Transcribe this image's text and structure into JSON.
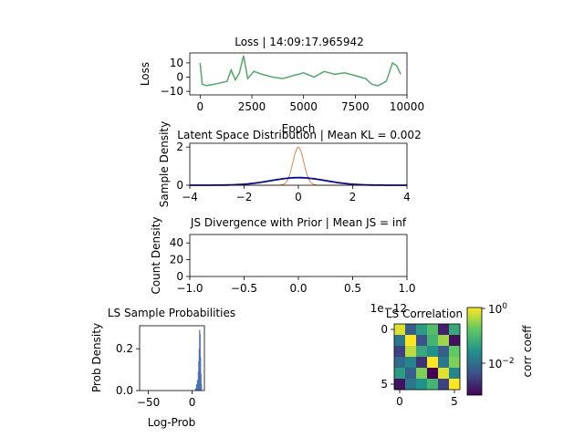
{
  "chart_data": [
    {
      "type": "line",
      "title": "Loss | 14:09:17.965942",
      "xlabel": "Epoch",
      "ylabel": "Loss",
      "xlim": [
        -500,
        10000
      ],
      "ylim": [
        -12.5,
        17
      ],
      "xticks": [
        0,
        2500,
        5000,
        7500,
        10000
      ],
      "yticks": [
        10,
        0,
        -10
      ],
      "series": [
        {
          "color": "#55a868",
          "x": [
            0,
            100,
            300,
            700,
            1000,
            1300,
            1500,
            1700,
            1900,
            2100,
            2300,
            2600,
            3000,
            3500,
            4000,
            4500,
            5000,
            5500,
            6000,
            6500,
            7000,
            7500,
            8000,
            8300,
            8600,
            9000,
            9300,
            9500,
            9700
          ],
          "y": [
            10,
            -5,
            -6,
            -5,
            -4,
            -3,
            5,
            -2,
            3,
            15,
            -1,
            4,
            2,
            0,
            -1,
            1,
            3,
            0,
            4,
            2,
            3,
            1,
            -1,
            -5,
            -6,
            -3,
            10,
            8,
            2
          ]
        }
      ]
    },
    {
      "type": "area",
      "title": "Latent Space Distribution | Mean KL = 0.002",
      "xlabel": "",
      "ylabel": "Sample Density",
      "xlim": [
        -4,
        4
      ],
      "ylim": [
        0,
        2.2
      ],
      "xticks": [
        -4,
        -2,
        0,
        2,
        4
      ],
      "yticks": [
        2,
        0
      ],
      "prior": {
        "color": "#0b0b8a",
        "mean": 0,
        "std": 1
      },
      "samples": {
        "color": "#dd8452",
        "mean": 0,
        "std": 0.2
      }
    },
    {
      "type": "line",
      "title": "JS Divergence with Prior | Mean JS = inf",
      "xlabel": "",
      "ylabel": "Count Density",
      "xlim": [
        -1,
        1
      ],
      "ylim": [
        0,
        50
      ],
      "xticks": [
        -1.0,
        -0.5,
        0.0,
        0.5,
        1.0
      ],
      "xtick_labels": [
        "−1.0",
        "−0.5",
        "0.0",
        "0.5",
        "1.0"
      ],
      "yticks": [
        40,
        20,
        0
      ],
      "offset_text": "1e−12",
      "series": []
    },
    {
      "type": "bar",
      "title": "LS Sample Probabilities",
      "xlabel": "Log-Prob",
      "ylabel": "Prob Density",
      "xlim": [
        -60,
        14
      ],
      "ylim": [
        0,
        0.31
      ],
      "xticks": [
        -50,
        0
      ],
      "xtick_labels": [
        "−50",
        "0"
      ],
      "yticks": [
        0.2,
        0.0
      ],
      "color": "#4c72b0",
      "bins": [
        {
          "x": 4.0,
          "h": 0.01
        },
        {
          "x": 5.0,
          "h": 0.03
        },
        {
          "x": 6.0,
          "h": 0.05
        },
        {
          "x": 7.0,
          "h": 0.09
        },
        {
          "x": 7.5,
          "h": 0.14
        },
        {
          "x": 8.0,
          "h": 0.2
        },
        {
          "x": 8.5,
          "h": 0.29
        },
        {
          "x": 9.0,
          "h": 0.27
        },
        {
          "x": 9.5,
          "h": 0.16
        },
        {
          "x": 10.0,
          "h": 0.08
        },
        {
          "x": 10.5,
          "h": 0.03
        }
      ]
    },
    {
      "type": "heatmap",
      "title": "LS Correlation",
      "xticks": [
        0,
        5
      ],
      "yticks": [
        0,
        5
      ],
      "colorbar": {
        "label": "corr coeff",
        "ticks": [
          "10",
          "10"
        ],
        "exponents": [
          "0",
          "−2"
        ]
      },
      "matrix": [
        [
          0.95,
          0.3,
          0.55,
          0.7,
          0.1,
          0.6
        ],
        [
          0.4,
          1.0,
          0.25,
          0.65,
          0.85,
          0.05
        ],
        [
          0.2,
          0.9,
          0.6,
          0.5,
          0.3,
          0.75
        ],
        [
          0.35,
          0.45,
          0.15,
          1.0,
          0.4,
          0.8
        ],
        [
          0.55,
          0.3,
          0.8,
          0.0,
          0.95,
          0.45
        ],
        [
          0.05,
          0.4,
          0.5,
          0.65,
          0.2,
          1.0
        ]
      ]
    }
  ]
}
